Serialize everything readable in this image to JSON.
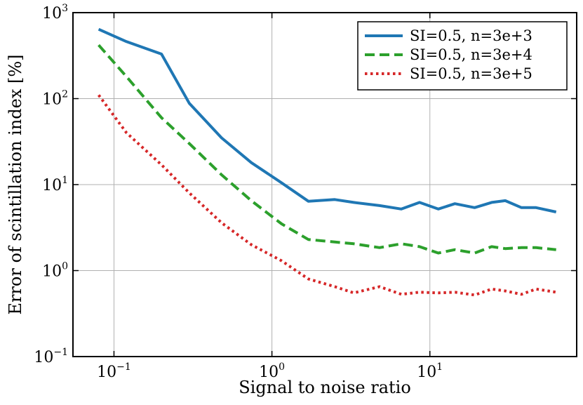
{
  "chart_data": {
    "type": "line",
    "title": "",
    "xlabel": "Signal to noise ratio",
    "ylabel": "Error of scintillation index [%]",
    "xscale": "log",
    "yscale": "log",
    "xlim": [
      0.055,
      85
    ],
    "ylim": [
      0.1,
      1000
    ],
    "grid": true,
    "x_ticks": [
      {
        "base": "10",
        "exp": "−1",
        "value": 0.1
      },
      {
        "base": "10",
        "exp": "0",
        "value": 1
      },
      {
        "base": "10",
        "exp": "1",
        "value": 10
      }
    ],
    "y_ticks": [
      {
        "base": "10",
        "exp": "−1",
        "value": 0.1
      },
      {
        "base": "10",
        "exp": "0",
        "value": 1
      },
      {
        "base": "10",
        "exp": "1",
        "value": 10
      },
      {
        "base": "10",
        "exp": "2",
        "value": 100
      },
      {
        "base": "10",
        "exp": "3",
        "value": 1000
      }
    ],
    "legend_position": "top-right",
    "x": [
      0.08,
      0.12,
      0.2,
      0.3,
      0.48,
      0.74,
      1.15,
      1.7,
      2.5,
      3.3,
      4.8,
      6.6,
      8.6,
      11.3,
      14.4,
      19.2,
      24.6,
      30,
      38,
      47,
      63
    ],
    "series": [
      {
        "name": "SI=0.5, n=3e+3",
        "color": "#1f77b4",
        "dash": "solid",
        "values": [
          640,
          460,
          330,
          88,
          35,
          18,
          10.5,
          6.4,
          6.7,
          6.2,
          5.7,
          5.2,
          6.2,
          5.2,
          6.0,
          5.4,
          6.2,
          6.5,
          5.4,
          5.4,
          4.8
        ]
      },
      {
        "name": "SI=0.5, n=3e+4",
        "color": "#2ca02c",
        "dash": "dashed",
        "values": [
          420,
          180,
          60,
          30,
          13,
          6.5,
          3.5,
          2.3,
          2.15,
          2.05,
          1.85,
          2.05,
          1.9,
          1.6,
          1.75,
          1.6,
          1.9,
          1.8,
          1.85,
          1.85,
          1.75
        ]
      },
      {
        "name": "SI=0.5, n=3e+5",
        "color": "#d62728",
        "dash": "dotted",
        "values": [
          110,
          40,
          17,
          8,
          3.6,
          2.0,
          1.3,
          0.8,
          0.65,
          0.55,
          0.65,
          0.53,
          0.56,
          0.55,
          0.56,
          0.52,
          0.61,
          0.58,
          0.53,
          0.61,
          0.56
        ]
      }
    ]
  }
}
